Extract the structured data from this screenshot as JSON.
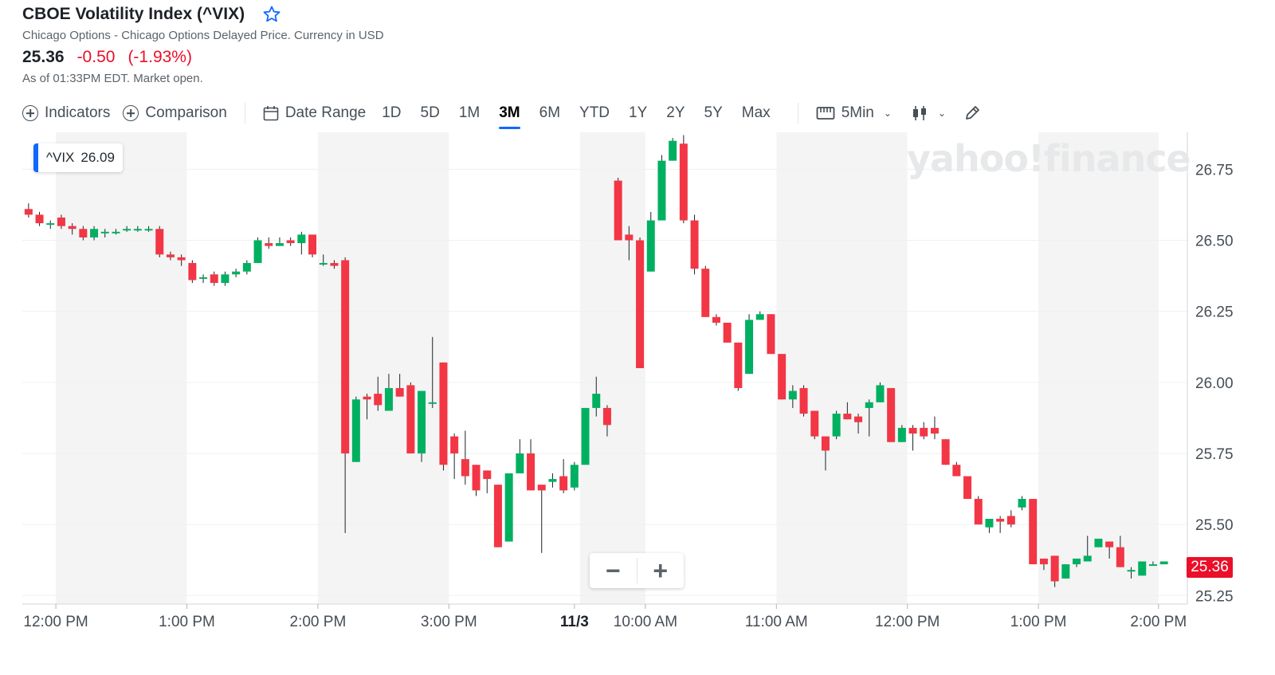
{
  "header": {
    "title": "CBOE Volatility Index (^VIX)",
    "subtitle": "Chicago Options - Chicago Options Delayed Price. Currency in USD",
    "price": "25.36",
    "change": "-0.50",
    "change_pct": "(-1.93%)",
    "as_of": "As of 01:33PM EDT. Market open."
  },
  "toolbar": {
    "indicators": "Indicators",
    "comparison": "Comparison",
    "date_range": "Date Range",
    "ranges": [
      "1D",
      "5D",
      "1M",
      "3M",
      "6M",
      "YTD",
      "1Y",
      "2Y",
      "5Y",
      "Max"
    ],
    "active_range": "3M",
    "interval": "5Min"
  },
  "tag": {
    "symbol": "^VIX",
    "value": "26.09"
  },
  "watermark": "yahoo!finance",
  "zoom": {
    "minus": "−",
    "plus": "+"
  },
  "current_price_marker": "25.36",
  "colors": {
    "up": "#00b061",
    "down": "#f23645",
    "accent": "#0f69ff",
    "negative_text": "#eb0f29"
  },
  "chart_data": {
    "type": "candlestick",
    "y_ticks": [
      25.25,
      25.5,
      25.75,
      26.0,
      26.25,
      26.5,
      26.75
    ],
    "y_tick_labels": [
      "25.25",
      "25.50",
      "25.75",
      "26.00",
      "26.25",
      "26.50",
      "26.75"
    ],
    "ylim": [
      25.22,
      26.88
    ],
    "x_labels": [
      {
        "label": "12:00 PM",
        "slot": 3
      },
      {
        "label": "1:00 PM",
        "slot": 15
      },
      {
        "label": "2:00 PM",
        "slot": 27
      },
      {
        "label": "3:00 PM",
        "slot": 39
      },
      {
        "label": "11/3",
        "slot": 50.5,
        "bold": true
      },
      {
        "label": "10:00 AM",
        "slot": 57
      },
      {
        "label": "11:00 AM",
        "slot": 69
      },
      {
        "label": "12:00 PM",
        "slot": 81
      },
      {
        "label": "1:00 PM",
        "slot": 93
      },
      {
        "label": "2:00 PM",
        "slot": 104
      }
    ],
    "shaded_bands": [
      [
        3,
        15
      ],
      [
        27,
        39
      ],
      [
        51,
        57
      ],
      [
        69,
        81
      ],
      [
        93,
        104
      ]
    ],
    "grid": true,
    "candles": [
      [
        26.61,
        26.59,
        26.63,
        26.58
      ],
      [
        26.59,
        26.56,
        26.6,
        26.55
      ],
      [
        26.56,
        26.56,
        26.57,
        26.54
      ],
      [
        26.58,
        26.55,
        26.59,
        26.54
      ],
      [
        26.55,
        26.54,
        26.56,
        26.52
      ],
      [
        26.54,
        26.51,
        26.55,
        26.5
      ],
      [
        26.51,
        26.54,
        26.55,
        26.5
      ],
      [
        26.53,
        26.53,
        26.54,
        26.51
      ],
      [
        26.53,
        26.53,
        26.54,
        26.52
      ],
      [
        26.54,
        26.54,
        26.55,
        26.53
      ],
      [
        26.54,
        26.54,
        26.55,
        26.53
      ],
      [
        26.54,
        26.54,
        26.55,
        26.53
      ],
      [
        26.54,
        26.45,
        26.55,
        26.44
      ],
      [
        26.45,
        26.44,
        26.46,
        26.43
      ],
      [
        26.44,
        26.43,
        26.45,
        26.41
      ],
      [
        26.42,
        26.36,
        26.43,
        26.35
      ],
      [
        26.37,
        26.37,
        26.38,
        26.35
      ],
      [
        26.38,
        26.35,
        26.39,
        26.34
      ],
      [
        26.35,
        26.38,
        26.39,
        26.34
      ],
      [
        26.38,
        26.39,
        26.4,
        26.37
      ],
      [
        26.39,
        26.42,
        26.43,
        26.38
      ],
      [
        26.42,
        26.5,
        26.51,
        26.42
      ],
      [
        26.49,
        26.48,
        26.51,
        26.47
      ],
      [
        26.48,
        26.49,
        26.51,
        26.48
      ],
      [
        26.5,
        26.49,
        26.51,
        26.48
      ],
      [
        26.49,
        26.52,
        26.53,
        26.45
      ],
      [
        26.52,
        26.45,
        26.52,
        26.44
      ],
      [
        26.42,
        26.42,
        26.45,
        26.41
      ],
      [
        26.42,
        26.41,
        26.43,
        26.4
      ],
      [
        26.43,
        25.75,
        26.44,
        25.47
      ],
      [
        25.72,
        25.94,
        25.95,
        25.72
      ],
      [
        25.95,
        25.94,
        25.96,
        25.87
      ],
      [
        25.96,
        25.92,
        26.02,
        25.9
      ],
      [
        25.9,
        25.98,
        26.03,
        25.9
      ],
      [
        25.98,
        25.95,
        26.03,
        25.95
      ],
      [
        25.99,
        25.75,
        26.0,
        25.75
      ],
      [
        25.75,
        25.97,
        25.97,
        25.72
      ],
      [
        25.93,
        25.93,
        26.16,
        25.91
      ],
      [
        26.07,
        25.71,
        26.07,
        25.69
      ],
      [
        25.81,
        25.75,
        25.82,
        25.66
      ],
      [
        25.73,
        25.67,
        25.83,
        25.64
      ],
      [
        25.71,
        25.62,
        25.71,
        25.6
      ],
      [
        25.69,
        25.66,
        25.69,
        25.61
      ],
      [
        25.64,
        25.42,
        25.64,
        25.42
      ],
      [
        25.44,
        25.68,
        25.68,
        25.44
      ],
      [
        25.68,
        25.75,
        25.8,
        25.68
      ],
      [
        25.75,
        25.62,
        25.8,
        25.62
      ],
      [
        25.64,
        25.62,
        25.64,
        25.4
      ],
      [
        25.65,
        25.66,
        25.68,
        25.63
      ],
      [
        25.67,
        25.62,
        25.73,
        25.61
      ],
      [
        25.63,
        25.71,
        25.72,
        25.62
      ],
      [
        25.71,
        25.91,
        25.91,
        25.71
      ],
      [
        25.91,
        25.96,
        26.02,
        25.88
      ],
      [
        25.91,
        25.85,
        25.92,
        25.81
      ],
      [
        26.71,
        26.5,
        26.72,
        26.5
      ],
      [
        26.52,
        26.5,
        26.55,
        26.43
      ],
      [
        26.5,
        26.05,
        26.51,
        26.05
      ],
      [
        26.39,
        26.57,
        26.6,
        26.39
      ],
      [
        26.57,
        26.78,
        26.8,
        26.57
      ],
      [
        26.78,
        26.85,
        26.86,
        26.78
      ],
      [
        26.84,
        26.57,
        26.87,
        26.56
      ],
      [
        26.57,
        26.4,
        26.59,
        26.38
      ],
      [
        26.4,
        26.23,
        26.41,
        26.23
      ],
      [
        26.23,
        26.21,
        26.24,
        26.2
      ],
      [
        26.21,
        26.14,
        26.21,
        26.14
      ],
      [
        26.14,
        25.98,
        26.14,
        25.97
      ],
      [
        26.03,
        26.22,
        26.24,
        26.03
      ],
      [
        26.22,
        26.24,
        26.25,
        26.22
      ],
      [
        26.24,
        26.1,
        26.24,
        26.1
      ],
      [
        26.1,
        25.94,
        26.1,
        25.94
      ],
      [
        25.94,
        25.97,
        25.99,
        25.91
      ],
      [
        25.98,
        25.89,
        25.99,
        25.88
      ],
      [
        25.9,
        25.81,
        25.9,
        25.8
      ],
      [
        25.81,
        25.76,
        25.81,
        25.69
      ],
      [
        25.81,
        25.89,
        25.9,
        25.8
      ],
      [
        25.89,
        25.87,
        25.93,
        25.87
      ],
      [
        25.88,
        25.86,
        25.89,
        25.82
      ],
      [
        25.91,
        25.93,
        25.94,
        25.81
      ],
      [
        25.93,
        25.99,
        26.0,
        25.93
      ],
      [
        25.98,
        25.79,
        25.98,
        25.79
      ],
      [
        25.79,
        25.84,
        25.85,
        25.79
      ],
      [
        25.84,
        25.82,
        25.85,
        25.76
      ],
      [
        25.84,
        25.81,
        25.86,
        25.8
      ],
      [
        25.84,
        25.82,
        25.88,
        25.8
      ],
      [
        25.8,
        25.71,
        25.8,
        25.71
      ],
      [
        25.71,
        25.67,
        25.72,
        25.67
      ],
      [
        25.67,
        25.59,
        25.67,
        25.59
      ],
      [
        25.59,
        25.5,
        25.6,
        25.5
      ],
      [
        25.49,
        25.52,
        25.52,
        25.47
      ],
      [
        25.52,
        25.51,
        25.53,
        25.47
      ],
      [
        25.53,
        25.5,
        25.55,
        25.49
      ],
      [
        25.56,
        25.59,
        25.6,
        25.55
      ],
      [
        25.59,
        25.36,
        25.59,
        25.36
      ],
      [
        25.38,
        25.36,
        25.38,
        25.34
      ],
      [
        25.39,
        25.3,
        25.39,
        25.28
      ],
      [
        25.31,
        25.36,
        25.36,
        25.31
      ],
      [
        25.36,
        25.38,
        25.38,
        25.35
      ],
      [
        25.37,
        25.39,
        25.46,
        25.37
      ],
      [
        25.42,
        25.45,
        25.45,
        25.42
      ],
      [
        25.44,
        25.42,
        25.44,
        25.38
      ],
      [
        25.42,
        25.35,
        25.46,
        25.35
      ],
      [
        25.34,
        25.34,
        25.35,
        25.31
      ],
      [
        25.32,
        25.37,
        25.37,
        25.32
      ],
      [
        25.36,
        25.36,
        25.37,
        25.36
      ],
      [
        25.36,
        25.37,
        25.37,
        25.36
      ]
    ]
  }
}
